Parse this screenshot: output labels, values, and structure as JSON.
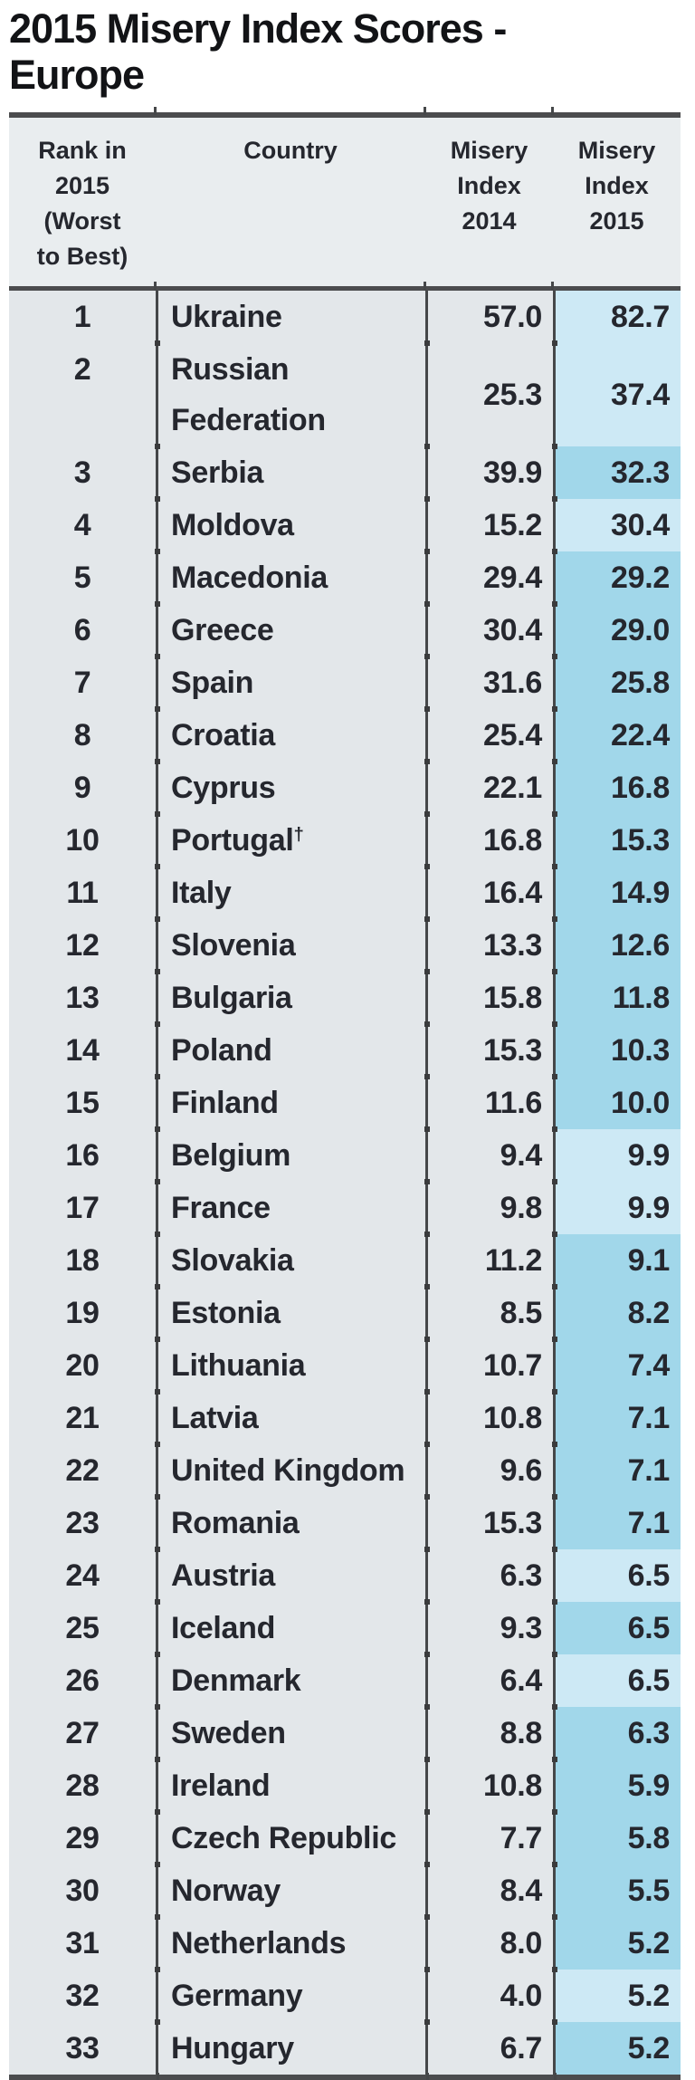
{
  "title": {
    "line1": "2015 Misery Index Scores -",
    "line2": "Europe"
  },
  "chart_data": {
    "type": "table",
    "title": "2015 Misery Index Scores - Europe",
    "columns": [
      "Rank in\n2015\n(Worst\nto Best)",
      "Country",
      "Misery\nIndex\n2014",
      "Misery\nIndex\n2015"
    ],
    "rows": [
      {
        "rank": "1",
        "country": "Ukraine",
        "mi2014": "57.0",
        "mi2015": "82.7"
      },
      {
        "rank": "2",
        "country": "Russian Federation",
        "mi2014": "25.3",
        "mi2015": "37.4"
      },
      {
        "rank": "3",
        "country": "Serbia",
        "mi2014": "39.9",
        "mi2015": "32.3"
      },
      {
        "rank": "4",
        "country": "Moldova",
        "mi2014": "15.2",
        "mi2015": "30.4"
      },
      {
        "rank": "5",
        "country": "Macedonia",
        "mi2014": "29.4",
        "mi2015": "29.2"
      },
      {
        "rank": "6",
        "country": "Greece",
        "mi2014": "30.4",
        "mi2015": "29.0"
      },
      {
        "rank": "7",
        "country": "Spain",
        "mi2014": "31.6",
        "mi2015": "25.8"
      },
      {
        "rank": "8",
        "country": "Croatia",
        "mi2014": "25.4",
        "mi2015": "22.4"
      },
      {
        "rank": "9",
        "country": "Cyprus",
        "mi2014": "22.1",
        "mi2015": "16.8"
      },
      {
        "rank": "10",
        "country": "Portugal",
        "sup": "†",
        "mi2014": "16.8",
        "mi2015": "15.3"
      },
      {
        "rank": "11",
        "country": "Italy",
        "mi2014": "16.4",
        "mi2015": "14.9"
      },
      {
        "rank": "12",
        "country": "Slovenia",
        "mi2014": "13.3",
        "mi2015": "12.6"
      },
      {
        "rank": "13",
        "country": "Bulgaria",
        "mi2014": "15.8",
        "mi2015": "11.8"
      },
      {
        "rank": "14",
        "country": "Poland",
        "mi2014": "15.3",
        "mi2015": "10.3"
      },
      {
        "rank": "15",
        "country": "Finland",
        "mi2014": "11.6",
        "mi2015": "10.0"
      },
      {
        "rank": "16",
        "country": "Belgium",
        "mi2014": "9.4",
        "mi2015": "9.9"
      },
      {
        "rank": "17",
        "country": "France",
        "mi2014": "9.8",
        "mi2015": "9.9"
      },
      {
        "rank": "18",
        "country": "Slovakia",
        "mi2014": "11.2",
        "mi2015": "9.1"
      },
      {
        "rank": "19",
        "country": "Estonia",
        "mi2014": "8.5",
        "mi2015": "8.2"
      },
      {
        "rank": "20",
        "country": "Lithuania",
        "mi2014": "10.7",
        "mi2015": "7.4"
      },
      {
        "rank": "21",
        "country": "Latvia",
        "mi2014": "10.8",
        "mi2015": "7.1"
      },
      {
        "rank": "22",
        "country": "United Kingdom",
        "mi2014": "9.6",
        "mi2015": "7.1"
      },
      {
        "rank": "23",
        "country": "Romania",
        "mi2014": "15.3",
        "mi2015": "7.1"
      },
      {
        "rank": "24",
        "country": "Austria",
        "mi2014": "6.3",
        "mi2015": "6.5"
      },
      {
        "rank": "25",
        "country": "Iceland",
        "mi2014": "9.3",
        "mi2015": "6.5"
      },
      {
        "rank": "26",
        "country": "Denmark",
        "mi2014": "6.4",
        "mi2015": "6.5"
      },
      {
        "rank": "27",
        "country": "Sweden",
        "mi2014": "8.8",
        "mi2015": "6.3"
      },
      {
        "rank": "28",
        "country": "Ireland",
        "mi2014": "10.8",
        "mi2015": "5.9"
      },
      {
        "rank": "29",
        "country": "Czech Republic",
        "mi2014": "7.7",
        "mi2015": "5.8"
      },
      {
        "rank": "30",
        "country": "Norway",
        "mi2014": "8.4",
        "mi2015": "5.5"
      },
      {
        "rank": "31",
        "country": "Netherlands",
        "mi2014": "8.0",
        "mi2015": "5.2"
      },
      {
        "rank": "32",
        "country": "Germany",
        "mi2014": "4.0",
        "mi2015": "5.2"
      },
      {
        "rank": "33",
        "country": "Hungary",
        "mi2014": "6.7",
        "mi2015": "5.2"
      }
    ]
  },
  "colors": {
    "line": "#4b4c4e",
    "divider": "#454749",
    "dot": "#3a3b3d",
    "bg-header": "#e9edef",
    "bg-body": "#e3e7ea",
    "blue-up": "#cde9f5",
    "blue-down": "#a1d7ea",
    "text": "#25272e",
    "title": "#121316"
  }
}
